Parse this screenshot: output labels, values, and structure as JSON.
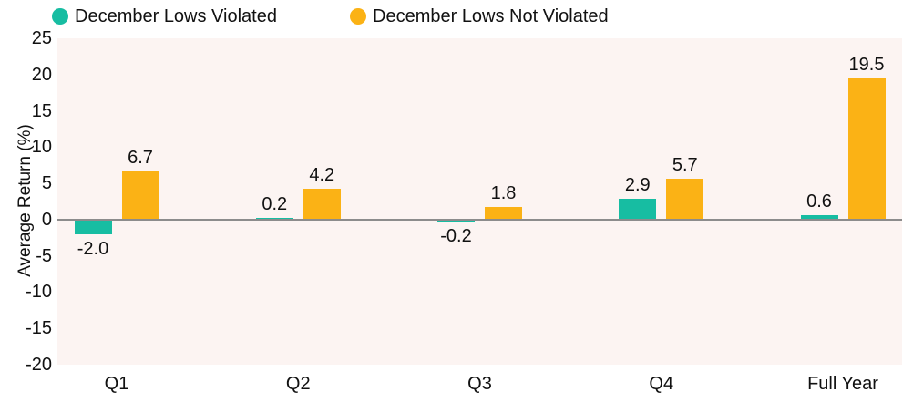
{
  "chart_data": {
    "type": "bar",
    "title": "",
    "categories": [
      "Q1",
      "Q2",
      "Q3",
      "Q4",
      "Full Year"
    ],
    "series": [
      {
        "name": "December Lows Violated",
        "color": "#17BDA2",
        "values": [
          -2.0,
          0.2,
          -0.2,
          2.9,
          0.6
        ]
      },
      {
        "name": "December Lows Not Violated",
        "color": "#FBB215",
        "values": [
          6.7,
          4.2,
          1.8,
          5.7,
          19.5
        ]
      }
    ],
    "xlabel": "",
    "ylabel": "Average Return (%)",
    "ylim": [
      -20,
      25
    ],
    "yticks": [
      25,
      20,
      15,
      10,
      5,
      0,
      -5,
      -10,
      -15,
      -20
    ],
    "grid": false,
    "legend_position": "top",
    "value_label_decimals": 1,
    "colors": {
      "plot_background": "#FCF4F2",
      "page_background": "#FFFFFF",
      "zero_line": "#8C8C8C",
      "text": "#111111"
    }
  }
}
